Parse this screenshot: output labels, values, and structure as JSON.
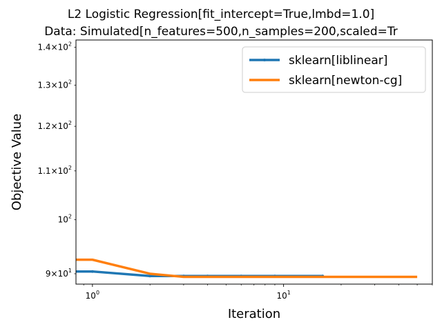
{
  "chart_data": {
    "type": "line",
    "title": [
      "L2 Logistic Regression[fit_intercept=True,lmbd=1.0]",
      "Data: Simulated[n_features=500,n_samples=200,scaled=Tr"
    ],
    "xlabel": "Iteration",
    "ylabel": "Objective Value",
    "xscale": "log",
    "yscale": "log",
    "xlim": [
      0.82,
      60
    ],
    "ylim": [
      88.2,
      142
    ],
    "x_ticks": [
      {
        "value": 1,
        "base": "10",
        "exp": "0"
      },
      {
        "value": 10,
        "base": "10",
        "exp": "1"
      }
    ],
    "y_ticks": [
      {
        "value": 90,
        "mantissa": "9",
        "base": "10",
        "exp": "1"
      },
      {
        "value": 100,
        "mantissa": "",
        "base": "10",
        "exp": "2"
      },
      {
        "value": 110,
        "mantissa": "1.1",
        "base": "10",
        "exp": "2"
      },
      {
        "value": 120,
        "mantissa": "1.2",
        "base": "10",
        "exp": "2"
      },
      {
        "value": 130,
        "mantissa": "1.3",
        "base": "10",
        "exp": "2"
      },
      {
        "value": 140,
        "mantissa": "1.4",
        "base": "10",
        "exp": "2"
      }
    ],
    "legend_position": "top-right",
    "grid": false,
    "series": [
      {
        "name": "sklearn[liblinear]",
        "color": "#1f77b4",
        "marker": true,
        "x": [
          0.5,
          1,
          2,
          3,
          4,
          6,
          9,
          16
        ],
        "y": [
          90.4,
          90.4,
          89.6,
          89.6,
          89.6,
          89.6,
          89.6,
          89.6
        ]
      },
      {
        "name": "sklearn[newton-cg]",
        "color": "#ff7f0e",
        "marker": false,
        "x": [
          0.5,
          1,
          2,
          3,
          4,
          6,
          9,
          16,
          50
        ],
        "y": [
          92.5,
          92.5,
          90.0,
          89.45,
          89.45,
          89.45,
          89.45,
          89.45,
          89.45
        ]
      }
    ]
  }
}
